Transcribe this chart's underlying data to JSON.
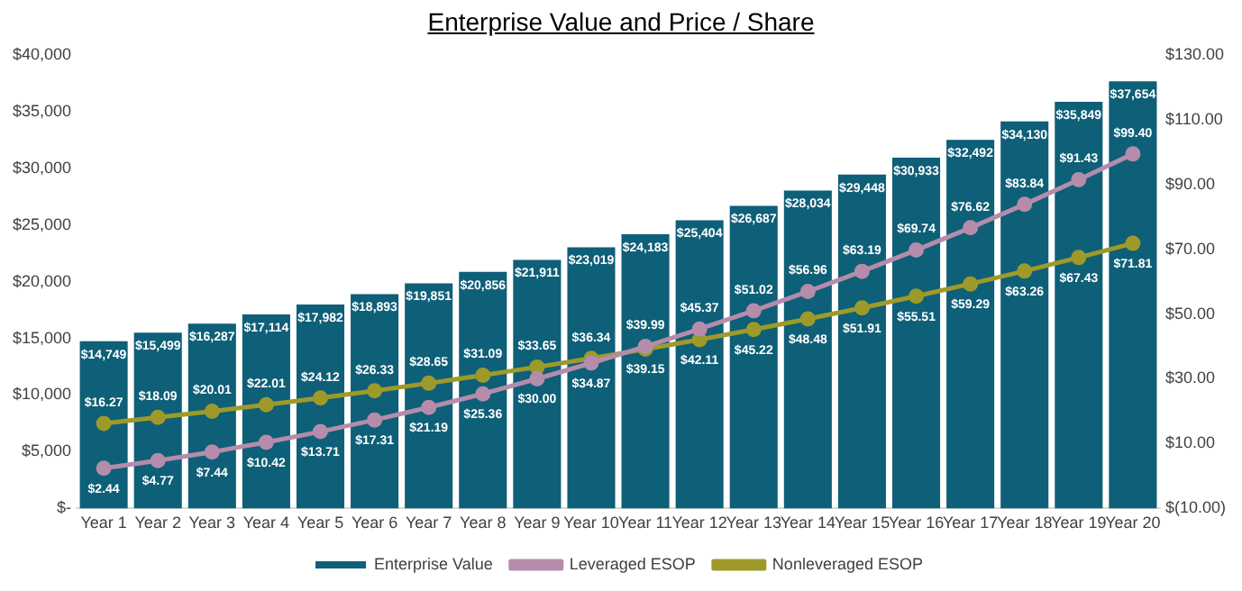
{
  "chart_data": {
    "type": "bar",
    "title": "Enterprise Value and Price / Share",
    "categories": [
      "Year 1",
      "Year 2",
      "Year 3",
      "Year 4",
      "Year 5",
      "Year 6",
      "Year 7",
      "Year 8",
      "Year 9",
      "Year 10",
      "Year 11",
      "Year 12",
      "Year 13",
      "Year 14",
      "Year 15",
      "Year 16",
      "Year 17",
      "Year 18",
      "Year 19",
      "Year 20"
    ],
    "series": [
      {
        "name": "Enterprise Value",
        "color": "#0e5f78",
        "values": [
          14749,
          15499,
          16287,
          17114,
          17982,
          18893,
          19851,
          20856,
          21911,
          23019,
          24183,
          25404,
          26687,
          28034,
          29448,
          30933,
          32492,
          34130,
          35849,
          37654
        ],
        "value_labels": [
          "$14,749",
          "$15,499",
          "$16,287",
          "$17,114",
          "$17,982",
          "$18,893",
          "$19,851",
          "$20,856",
          "$21,911",
          "$23,019",
          "$24,183",
          "$25,404",
          "$26,687",
          "$28,034",
          "$29,448",
          "$30,933",
          "$32,492",
          "$34,130",
          "$35,849",
          "$37,654"
        ]
      },
      {
        "name": "Leveraged ESOP",
        "type": "line",
        "axis": "y2",
        "color": "#b58cab",
        "values": [
          2.44,
          4.77,
          7.44,
          10.42,
          13.71,
          17.31,
          21.19,
          25.36,
          30.0,
          34.87,
          39.99,
          45.37,
          51.02,
          56.96,
          63.19,
          69.74,
          76.62,
          83.84,
          91.43,
          99.4
        ],
        "value_labels": [
          "$2.44",
          "$4.77",
          "$7.44",
          "$10.42",
          "$13.71",
          "$17.31",
          "$21.19",
          "$25.36",
          "$30.00",
          "$34.87",
          "$39.99",
          "$45.37",
          "$51.02",
          "$56.96",
          "$63.19",
          "$69.74",
          "$76.62",
          "$83.84",
          "$91.43",
          "$99.40"
        ]
      },
      {
        "name": "Nonleveraged ESOP",
        "type": "line",
        "axis": "y2",
        "color": "#9e9a2a",
        "values": [
          16.27,
          18.09,
          20.01,
          22.01,
          24.12,
          26.33,
          28.65,
          31.09,
          33.65,
          36.34,
          39.15,
          42.11,
          45.22,
          48.48,
          51.91,
          55.51,
          59.29,
          63.26,
          67.43,
          71.81
        ],
        "value_labels": [
          "$16.27",
          "$18.09",
          "$20.01",
          "$22.01",
          "$24.12",
          "$26.33",
          "$28.65",
          "$31.09",
          "$33.65",
          "$36.34",
          "$39.15",
          "$42.11",
          "$45.22",
          "$48.48",
          "$51.91",
          "$55.51",
          "$59.29",
          "$63.26",
          "$67.43",
          "$71.81"
        ]
      }
    ],
    "ylim": [
      0,
      40000
    ],
    "yticks": [
      {
        "value": 0,
        "label": "$-"
      },
      {
        "value": 5000,
        "label": "$5,000"
      },
      {
        "value": 10000,
        "label": "$10,000"
      },
      {
        "value": 15000,
        "label": "$15,000"
      },
      {
        "value": 20000,
        "label": "$20,000"
      },
      {
        "value": 25000,
        "label": "$25,000"
      },
      {
        "value": 30000,
        "label": "$30,000"
      },
      {
        "value": 35000,
        "label": "$35,000"
      },
      {
        "value": 40000,
        "label": "$40,000"
      }
    ],
    "y2lim": [
      -10,
      130
    ],
    "y2ticks": [
      {
        "value": -10,
        "label": "$(10.00)"
      },
      {
        "value": 10,
        "label": "$10.00"
      },
      {
        "value": 30,
        "label": "$30.00"
      },
      {
        "value": 50,
        "label": "$50.00"
      },
      {
        "value": 70,
        "label": "$70.00"
      },
      {
        "value": 90,
        "label": "$90.00"
      },
      {
        "value": 110,
        "label": "$110.00"
      },
      {
        "value": 130,
        "label": "$130.00"
      }
    ],
    "grid": false,
    "legend": "bottom",
    "marker": "circle",
    "line_style": "solid"
  }
}
